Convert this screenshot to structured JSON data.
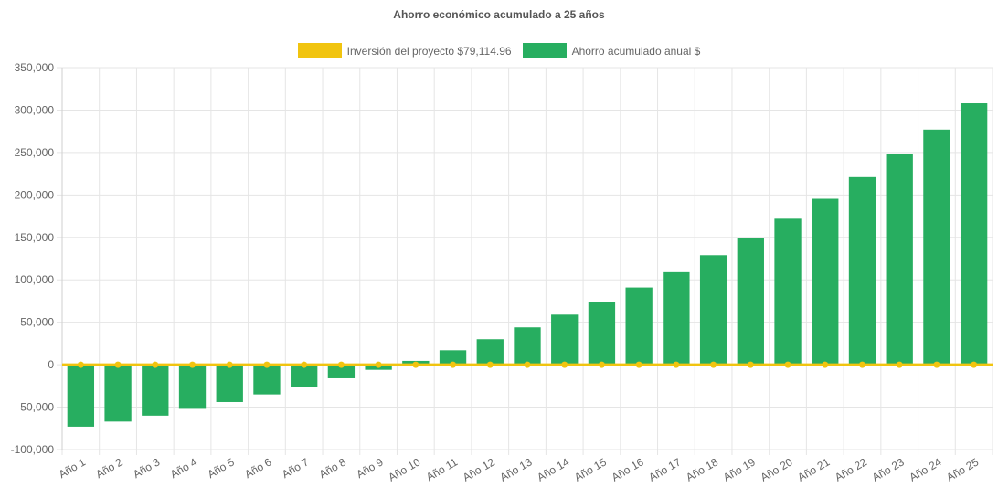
{
  "chart_data": {
    "type": "bar",
    "title": "Ahorro económico acumulado a 25 años",
    "xlabel": "",
    "ylabel": "",
    "ylim": [
      -100000,
      350000
    ],
    "y_ticks": [
      "350,000",
      "300,000",
      "250,000",
      "200,000",
      "150,000",
      "100,000",
      "50,000",
      "0",
      "-50,000",
      "-100,000"
    ],
    "categories": [
      "Año 1",
      "Año 2",
      "Año 3",
      "Año 4",
      "Año 5",
      "Año 6",
      "Año 7",
      "Año 8",
      "Año 9",
      "Año 10",
      "Año 11",
      "Año 12",
      "Año 13",
      "Año 14",
      "Año 15",
      "Año 16",
      "Año 17",
      "Año 18",
      "Año 19",
      "Año 20",
      "Año 21",
      "Año 22",
      "Año 23",
      "Año 24",
      "Año 25"
    ],
    "grid": true,
    "legend_position": "top",
    "series": [
      {
        "name": "Inversión del proyecto $79,114.96",
        "type": "line",
        "color": "#f1c40f",
        "values": [
          0,
          0,
          0,
          0,
          0,
          0,
          0,
          0,
          0,
          0,
          0,
          0,
          0,
          0,
          0,
          0,
          0,
          0,
          0,
          0,
          0,
          0,
          0,
          0,
          0
        ]
      },
      {
        "name": "Ahorro acumulado anual $",
        "type": "bar",
        "color": "#27ae60",
        "values": [
          -73000,
          -67000,
          -60000,
          -52000,
          -44000,
          -35000,
          -26000,
          -16000,
          -6000,
          4500,
          17000,
          30000,
          44000,
          59000,
          74000,
          91000,
          109000,
          129000,
          149500,
          172000,
          195500,
          221000,
          248000,
          277000,
          308000
        ]
      }
    ]
  }
}
